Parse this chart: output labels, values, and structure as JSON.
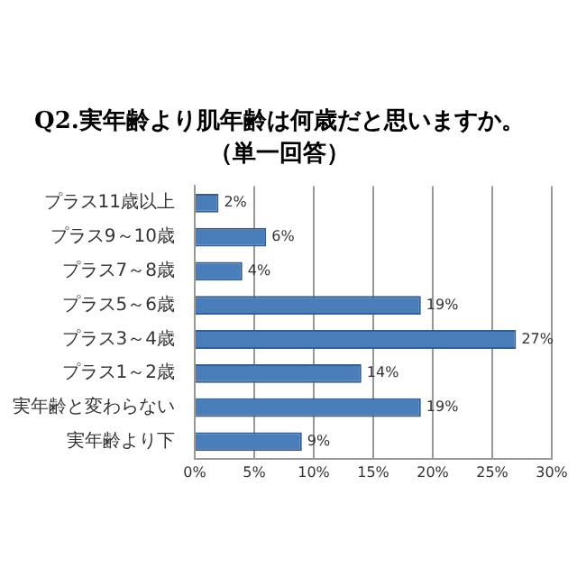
{
  "chart_data": {
    "type": "bar",
    "orientation": "horizontal",
    "title": "Q2.実年齢より肌年齢は何歳だと思いますか。",
    "subtitle": "（単一回答）",
    "categories": [
      "プラス11歳以上",
      "プラス9～10歳",
      "プラス7～8歳",
      "プラス5～6歳",
      "プラス3～4歳",
      "プラス1～2歳",
      "実年齢と変わらない",
      "実年齢より下"
    ],
    "values": [
      2,
      6,
      4,
      19,
      27,
      14,
      19,
      9
    ],
    "value_labels": [
      "2%",
      "6%",
      "4%",
      "19%",
      "27%",
      "14%",
      "19%",
      "9%"
    ],
    "color": "#4a7ebb",
    "xlim": [
      0,
      30
    ],
    "xticks": [
      {
        "value": 0,
        "label": "0%"
      },
      {
        "value": 5,
        "label": "5%"
      },
      {
        "value": 10,
        "label": "10%"
      },
      {
        "value": 15,
        "label": "15%"
      },
      {
        "value": 20,
        "label": "20%"
      },
      {
        "value": 25,
        "label": "25%"
      },
      {
        "value": 30,
        "label": "30%"
      }
    ],
    "grid": "x",
    "legend": false
  }
}
